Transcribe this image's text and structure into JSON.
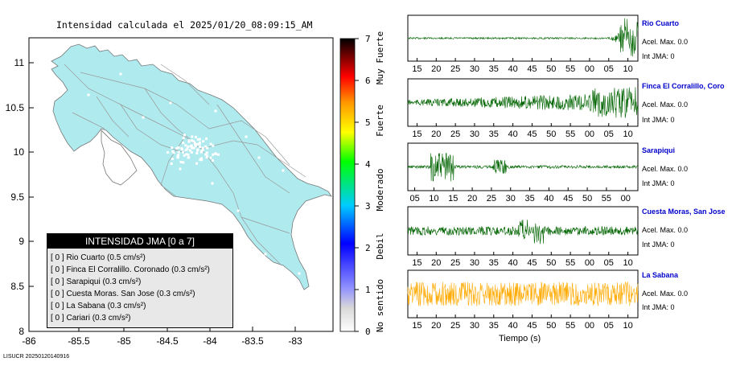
{
  "header": {
    "title": "Intensidad calculada el 2025/01/20_08:09:15_AM"
  },
  "map": {
    "x_ticks": [
      "-86",
      "-85.5",
      "-85",
      "-84.5",
      "-84",
      "-83.5",
      "-83"
    ],
    "y_ticks": [
      "8",
      "8.5",
      "9",
      "9.5",
      "10",
      "10.5",
      "11"
    ],
    "land_color": "#aeeaee",
    "ocean_color": "#ffffff"
  },
  "legend": {
    "title": "INTENSIDAD JMA [0 a 7]",
    "rows": [
      {
        "index": "[ 0 ]",
        "name": "Rio Cuarto (0.5 cm/s²)"
      },
      {
        "index": "[ 0 ]",
        "name": "Finca El Corralillo. Coronado (0.3 cm/s²)"
      },
      {
        "index": "[ 0 ]",
        "name": "Sarapiqui (0.3 cm/s²)"
      },
      {
        "index": "[ 0 ]",
        "name": "Cuesta Moras. San Jose (0.3 cm/s²)"
      },
      {
        "index": "[ 0 ]",
        "name": "La Sabana (0.3 cm/s²)"
      },
      {
        "index": "[ 0 ]",
        "name": "Cariari (0.3 cm/s²)"
      }
    ]
  },
  "colorbar": {
    "ticks": [
      "0",
      "1",
      "2",
      "3",
      "4",
      "5",
      "6",
      "7"
    ],
    "labels": [
      "No sentido",
      "Debil",
      "Moderado",
      "Fuerte",
      "Muy Fuerte"
    ]
  },
  "waveforms": {
    "panels": [
      {
        "title": "Rio Cuarto",
        "acel": "Acel. Max. 0.0",
        "int": "Int JMA: 0",
        "color": "#006400",
        "ticks": [
          "15",
          "20",
          "25",
          "30",
          "35",
          "40",
          "45",
          "50",
          "55",
          "00",
          "05",
          "10"
        ],
        "tick_start": 0.04
      },
      {
        "title": "Finca El Corralillo, Coro",
        "acel": "Acel. Max. 0.0",
        "int": "Int JMA: 0",
        "color": "#006400",
        "ticks": [
          "15",
          "20",
          "25",
          "30",
          "35",
          "40",
          "45",
          "50",
          "55",
          "00",
          "05",
          "10"
        ],
        "tick_start": 0.04
      },
      {
        "title": "Sarapiqui",
        "acel": "Acel. Max. 0.0",
        "int": "Int JMA: 0",
        "color": "#006400",
        "ticks": [
          "05",
          "10",
          "15",
          "20",
          "25",
          "30",
          "35",
          "40",
          "45",
          "50",
          "55",
          "00"
        ],
        "tick_start": 0.03
      },
      {
        "title": "Cuesta Moras, San Jose",
        "acel": "Acel. Max. 0.0",
        "int": "Int JMA: 0",
        "color": "#006400",
        "ticks": [
          "15",
          "20",
          "25",
          "30",
          "35",
          "40",
          "45",
          "50",
          "55",
          "00",
          "05",
          "10"
        ],
        "tick_start": 0.04
      },
      {
        "title": "La Sabana",
        "acel": "Acel. Max. 0.0",
        "int": "Int JMA: 0",
        "color": "#ffaa00",
        "ticks": [
          "15",
          "20",
          "25",
          "30",
          "35",
          "40",
          "45",
          "50",
          "55",
          "00",
          "05",
          "10"
        ],
        "tick_start": 0.04
      }
    ],
    "xlabel": "Tiempo (s)"
  },
  "footer": {
    "text": "LISUCR 20250120140916"
  }
}
